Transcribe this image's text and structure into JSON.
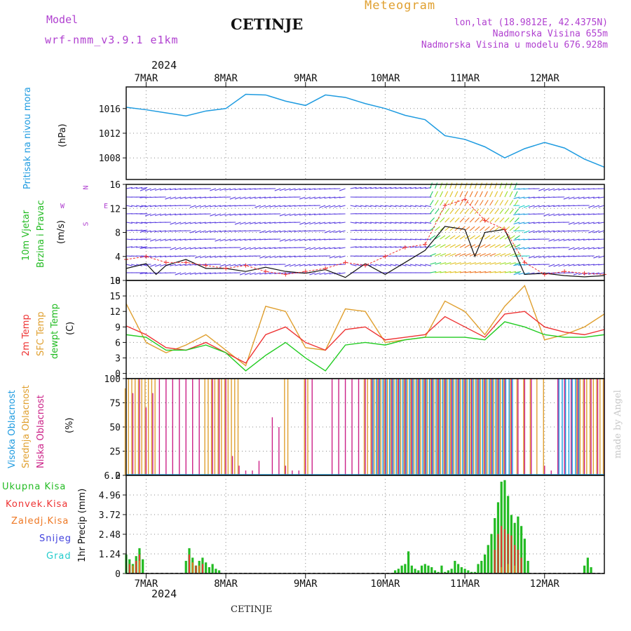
{
  "header": {
    "model_label": "Model",
    "model_name": "wrf-nmm_v3.9.1 e1km",
    "station": "CETINJE",
    "meteogram": "Meteogram",
    "lonlat": "lon,lat (18.9812E, 42.4375N)",
    "elevation": "Nadmorska Visina 655m",
    "model_elevation": "Nadmorska Visina u modelu 676.928m",
    "year_top": "2024",
    "year_bottom": "2024",
    "footer_station": "CETINJE",
    "credit": "made by Angel"
  },
  "colors": {
    "pressure": "#1e9be0",
    "temp2m": "#ee3333",
    "sfc": "#e0a030",
    "dewpt": "#22cc22",
    "high_cloud": "#1e9be0",
    "mid_cloud": "#e0a030",
    "low_cloud": "#cc2288",
    "label_purple": "#b040d0",
    "total_precip": "#22bb22",
    "conv_precip": "#ee3333",
    "frozen_precip": "#ee7722",
    "snow": "#4040dd",
    "graupel": "#22cccc"
  },
  "chart_data": [
    {
      "type": "line",
      "panel": "pressure",
      "ylabel_name": "Pritisak na nivou mora",
      "ylabel_unit": "(hPa)",
      "ylim": [
        1004.5,
        1019.5
      ],
      "yticks": [
        1008,
        1012,
        1016
      ],
      "x_categories": [
        "7MAR",
        "8MAR",
        "9MAR",
        "10MAR",
        "11MAR",
        "12MAR"
      ],
      "x_start_hours": -6,
      "x_end_hours": 138,
      "grid": true,
      "series": [
        {
          "x": [
            -6,
            0,
            6,
            12,
            18,
            24,
            30,
            36,
            42,
            48,
            54,
            60,
            66,
            72,
            78,
            84,
            90,
            96,
            102,
            108,
            114,
            120,
            126,
            132,
            138
          ],
          "y": [
            1016.2,
            1015.8,
            1015.3,
            1014.8,
            1015.6,
            1016.0,
            1018.3,
            1018.2,
            1017.2,
            1016.5,
            1018.2,
            1017.8,
            1016.8,
            1016.0,
            1014.9,
            1014.2,
            1011.6,
            1011.0,
            1009.8,
            1008.0,
            1009.5,
            1010.5,
            1009.6,
            1007.8,
            1006.5
          ]
        }
      ]
    },
    {
      "type": "barbs",
      "panel": "wind",
      "ylabel_name": "10m Vjetar",
      "ylabel_name2": "Brzina i Pravac",
      "ylabel_unit": "(m/s)",
      "compass": {
        "north": "N",
        "south": "S",
        "east": "E",
        "west": "W"
      },
      "ylim": [
        0,
        16
      ],
      "yticks": [
        0,
        4,
        8,
        12,
        16
      ],
      "grid": true,
      "series": [
        {
          "name": "speed",
          "x": [
            -6,
            0,
            3,
            6,
            12,
            18,
            24,
            30,
            36,
            42,
            48,
            54,
            60,
            66,
            72,
            78,
            84,
            90,
            96,
            99,
            102,
            108,
            114,
            120,
            126,
            132,
            138
          ],
          "y": [
            2.0,
            2.8,
            1.0,
            2.5,
            3.5,
            2.0,
            2.0,
            1.5,
            2.2,
            1.5,
            1.2,
            1.8,
            0.5,
            2.8,
            1.0,
            3.0,
            5.0,
            9.0,
            8.5,
            4.0,
            8.0,
            8.5,
            1.0,
            1.2,
            0.8,
            0.6,
            0.8
          ]
        },
        {
          "name": "gust",
          "x": [
            -6,
            0,
            6,
            12,
            18,
            24,
            30,
            36,
            42,
            48,
            54,
            60,
            66,
            72,
            78,
            84,
            90,
            96,
            102,
            108,
            114,
            120,
            126,
            132,
            138
          ],
          "y": [
            3.5,
            4.0,
            3.0,
            3.0,
            2.5,
            2.0,
            2.5,
            1.5,
            1.0,
            1.5,
            2.0,
            3.0,
            2.5,
            4.0,
            5.5,
            6.0,
            12.5,
            13.5,
            10.0,
            8.5,
            3.0,
            1.0,
            1.5,
            1.2,
            1.0
          ]
        }
      ]
    },
    {
      "type": "line",
      "panel": "temperature",
      "ylabel_t2m": "2m Temp",
      "ylabel_sfc": "SFC Temp",
      "ylabel_dew": "dewpt Temp",
      "ylabel_unit": "(C)",
      "ylim": [
        -1,
        18
      ],
      "yticks": [
        0,
        3,
        6,
        9,
        12,
        15,
        18
      ],
      "grid": true,
      "series": [
        {
          "name": "2m Temp",
          "x": [
            -6,
            0,
            6,
            12,
            18,
            24,
            30,
            36,
            42,
            48,
            54,
            60,
            66,
            72,
            78,
            84,
            90,
            96,
            102,
            108,
            114,
            120,
            126,
            132,
            138
          ],
          "y": [
            9.2,
            7.5,
            5.0,
            4.5,
            6.0,
            4.0,
            2.0,
            7.5,
            9.0,
            6.0,
            4.5,
            8.5,
            9.0,
            6.5,
            7.0,
            7.5,
            11.0,
            9.0,
            7.0,
            11.5,
            12.0,
            9.0,
            8.0,
            7.5,
            8.5
          ]
        },
        {
          "name": "SFC Temp",
          "x": [
            -6,
            0,
            6,
            12,
            18,
            24,
            30,
            36,
            42,
            48,
            54,
            60,
            66,
            72,
            78,
            84,
            90,
            96,
            102,
            108,
            114,
            120,
            126,
            132,
            138
          ],
          "y": [
            13.5,
            6.0,
            4.0,
            5.5,
            7.5,
            4.5,
            1.5,
            13.0,
            12.0,
            5.0,
            4.5,
            12.5,
            12.0,
            6.0,
            6.5,
            7.0,
            14.0,
            12.0,
            7.5,
            13.0,
            17.0,
            6.5,
            7.5,
            9.0,
            11.5
          ]
        },
        {
          "name": "dewpt Temp",
          "x": [
            -6,
            0,
            6,
            12,
            18,
            24,
            30,
            36,
            42,
            48,
            54,
            60,
            66,
            72,
            78,
            84,
            90,
            96,
            102,
            108,
            114,
            120,
            126,
            132,
            138
          ],
          "y": [
            7.5,
            7.0,
            4.5,
            4.5,
            5.5,
            4.0,
            0.5,
            3.5,
            6.0,
            3.0,
            0.5,
            5.5,
            6.0,
            5.5,
            6.5,
            7.0,
            7.0,
            7.0,
            6.5,
            10.0,
            9.0,
            7.5,
            7.0,
            7.0,
            7.5
          ]
        }
      ]
    },
    {
      "type": "bar",
      "panel": "clouds",
      "ylabel_high": "Visoka Oblacnost",
      "ylabel_mid": "Srednja Oblacnost",
      "ylabel_low": "Niska Oblacnost",
      "ylabel_unit": "(%)",
      "ylim": [
        0,
        100
      ],
      "yticks": [
        0,
        25,
        50,
        75,
        100
      ],
      "grid": true,
      "series": [
        {
          "name": "Srednja Oblacnost",
          "x": [
            -6,
            -5,
            -4,
            -3,
            -2,
            -1,
            0,
            1,
            2,
            3,
            18,
            19,
            20,
            21,
            22,
            23,
            24,
            25,
            26,
            27,
            28,
            42,
            43,
            48,
            49,
            66,
            67,
            68,
            69,
            70,
            71,
            72,
            73,
            74,
            75,
            76,
            77,
            78,
            79,
            80,
            81,
            82,
            83,
            84,
            85,
            86,
            87,
            88,
            89,
            90,
            91,
            92,
            93,
            94,
            95,
            96,
            97,
            98,
            99,
            100,
            101,
            102,
            103,
            104,
            105,
            106,
            107,
            108,
            110,
            112,
            114,
            116,
            118,
            120,
            130,
            131,
            132,
            133,
            134,
            135,
            136,
            137,
            138
          ],
          "y": [
            90,
            100,
            100,
            100,
            100,
            100,
            100,
            100,
            100,
            100,
            100,
            100,
            100,
            100,
            100,
            100,
            100,
            100,
            100,
            100,
            100,
            100,
            100,
            100,
            100,
            100,
            100,
            100,
            100,
            100,
            100,
            100,
            100,
            100,
            100,
            100,
            100,
            100,
            100,
            100,
            100,
            100,
            100,
            100,
            100,
            100,
            100,
            100,
            100,
            100,
            100,
            100,
            100,
            100,
            100,
            100,
            100,
            100,
            100,
            100,
            100,
            100,
            100,
            100,
            100,
            100,
            100,
            100,
            100,
            100,
            100,
            100,
            100,
            100,
            100,
            100,
            100,
            100,
            100,
            100,
            100,
            100,
            100
          ]
        },
        {
          "name": "Niska Oblacnost",
          "x": [
            -4,
            -2,
            0,
            2,
            4,
            6,
            8,
            10,
            12,
            14,
            16,
            20,
            22,
            24,
            26,
            28,
            30,
            32,
            34,
            38,
            40,
            42,
            44,
            46,
            48,
            50,
            56,
            58,
            60,
            62,
            64,
            66,
            68,
            70,
            72,
            74,
            76,
            78,
            80,
            82,
            84,
            86,
            88,
            90,
            92,
            94,
            96,
            98,
            100,
            102,
            104,
            106,
            108,
            110,
            112,
            114,
            116,
            120,
            122,
            124,
            126,
            128,
            130,
            132,
            134,
            136,
            138
          ],
          "y": [
            85,
            100,
            70,
            85,
            100,
            100,
            100,
            100,
            100,
            100,
            100,
            100,
            100,
            100,
            20,
            10,
            5,
            5,
            15,
            60,
            50,
            10,
            5,
            5,
            100,
            100,
            100,
            100,
            100,
            100,
            100,
            100,
            100,
            100,
            100,
            100,
            100,
            100,
            100,
            100,
            100,
            100,
            100,
            100,
            100,
            100,
            100,
            100,
            100,
            100,
            100,
            100,
            100,
            100,
            100,
            100,
            100,
            10,
            5,
            100,
            100,
            100,
            100,
            100,
            100,
            100,
            100
          ]
        },
        {
          "name": "Visoka Oblacnost",
          "x": [
            68,
            69,
            70,
            71,
            72,
            73,
            74,
            75,
            76,
            77,
            78,
            79,
            80,
            81,
            82,
            83,
            84,
            85,
            86,
            87,
            88,
            89,
            90,
            91,
            92,
            93,
            94,
            95,
            96,
            97,
            98,
            99,
            100,
            101,
            102,
            103,
            104,
            105,
            106,
            107,
            108,
            109,
            110,
            124,
            125,
            126,
            127,
            128,
            129,
            130
          ],
          "y": [
            100,
            100,
            100,
            100,
            100,
            100,
            100,
            100,
            100,
            100,
            100,
            100,
            100,
            100,
            100,
            100,
            100,
            100,
            100,
            100,
            100,
            100,
            100,
            100,
            100,
            100,
            100,
            100,
            100,
            100,
            100,
            100,
            100,
            100,
            100,
            100,
            100,
            100,
            100,
            100,
            100,
            100,
            100,
            100,
            100,
            100,
            100,
            100,
            100,
            100
          ]
        }
      ]
    },
    {
      "type": "bar",
      "panel": "precip",
      "ylabel_unit": "1hr Precip (mm)",
      "legend": [
        "Ukupna Kisa",
        "Konvek.Kisa",
        "Zaledj.Kisa",
        "Snijeg",
        "Grad"
      ],
      "ylim": [
        0,
        6.2
      ],
      "yticks": [
        "1.24",
        "2.48",
        "3.72",
        "4.96",
        "6.2"
      ],
      "ytick_values": [
        1.24,
        2.48,
        3.72,
        4.96,
        6.2
      ],
      "x_categories": [
        "7MAR",
        "8MAR",
        "9MAR",
        "10MAR",
        "11MAR",
        "12MAR"
      ],
      "grid": true,
      "series": [
        {
          "name": "Ukupna Kisa",
          "x": [
            -6,
            -5,
            -4,
            -3,
            -2,
            -1,
            12,
            13,
            14,
            15,
            16,
            17,
            18,
            19,
            20,
            21,
            22,
            75,
            76,
            77,
            78,
            79,
            80,
            81,
            82,
            83,
            84,
            85,
            86,
            87,
            88,
            89,
            90,
            91,
            92,
            93,
            94,
            95,
            96,
            97,
            98,
            99,
            100,
            101,
            102,
            103,
            104,
            105,
            106,
            107,
            108,
            109,
            110,
            111,
            112,
            113,
            114,
            115,
            132,
            133,
            134
          ],
          "y": [
            1.2,
            0.9,
            0.6,
            1.1,
            1.6,
            0.9,
            0.8,
            1.6,
            1.0,
            0.5,
            0.8,
            1.0,
            0.7,
            0.4,
            0.6,
            0.3,
            0.2,
            0.2,
            0.3,
            0.5,
            0.6,
            1.4,
            0.5,
            0.3,
            0.2,
            0.5,
            0.6,
            0.5,
            0.4,
            0.2,
            0.1,
            0.5,
            0.1,
            0.2,
            0.3,
            0.8,
            0.6,
            0.4,
            0.3,
            0.2,
            0.1,
            0.1,
            0.6,
            0.8,
            1.2,
            1.8,
            2.5,
            3.5,
            4.5,
            5.8,
            5.9,
            4.9,
            3.7,
            3.2,
            3.6,
            3.0,
            2.2,
            0.8,
            0.5,
            1.0,
            0.4
          ]
        },
        {
          "name": "Konvek.Kisa",
          "x": [
            -5,
            -3,
            -2,
            13,
            15,
            17,
            105,
            106,
            107,
            108,
            109,
            110,
            111,
            112,
            113
          ],
          "y": [
            0.6,
            0.8,
            1.2,
            1.2,
            0.5,
            0.6,
            1.5,
            2.5,
            3.0,
            2.8,
            2.5,
            2.4,
            1.8,
            1.5,
            1.0
          ]
        },
        {
          "name": "Zaledj.Kisa",
          "x": [
            -4,
            -2,
            14,
            16,
            107,
            109,
            111
          ],
          "y": [
            0.5,
            0.8,
            0.7,
            0.5,
            0.4,
            0.6,
            0.5
          ]
        },
        {
          "name": "Snijeg",
          "x": [],
          "y": []
        },
        {
          "name": "Grad",
          "x": [],
          "y": []
        }
      ]
    }
  ]
}
